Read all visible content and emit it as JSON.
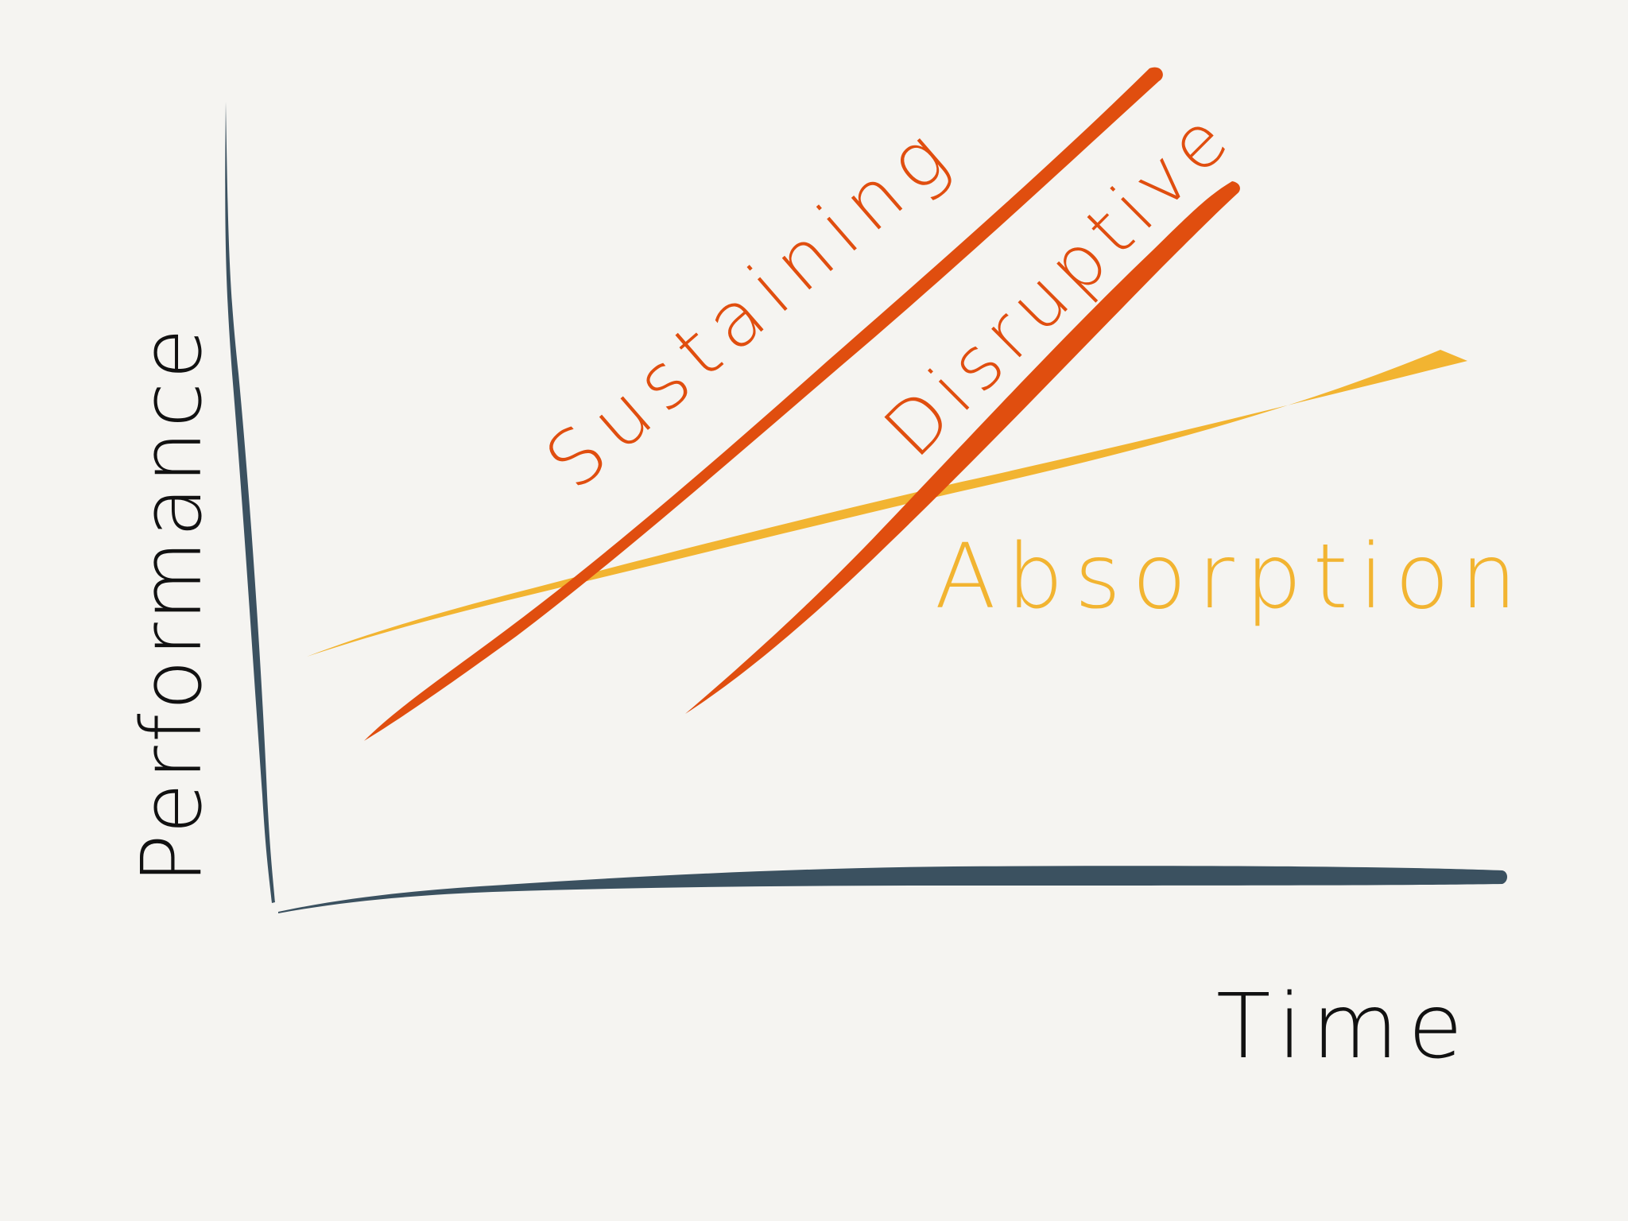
{
  "axes": {
    "y_label": "Performance",
    "x_label": "Time",
    "color": "#3b5160",
    "text_color": "#111111"
  },
  "curves": [
    {
      "key": "sustaining",
      "label": "Sustaining",
      "color": "#e04e0f"
    },
    {
      "key": "disruptive",
      "label": "Disruptive",
      "color": "#e04e0f"
    },
    {
      "key": "absorption",
      "label": "Absorption",
      "color": "#f2b431"
    }
  ]
}
